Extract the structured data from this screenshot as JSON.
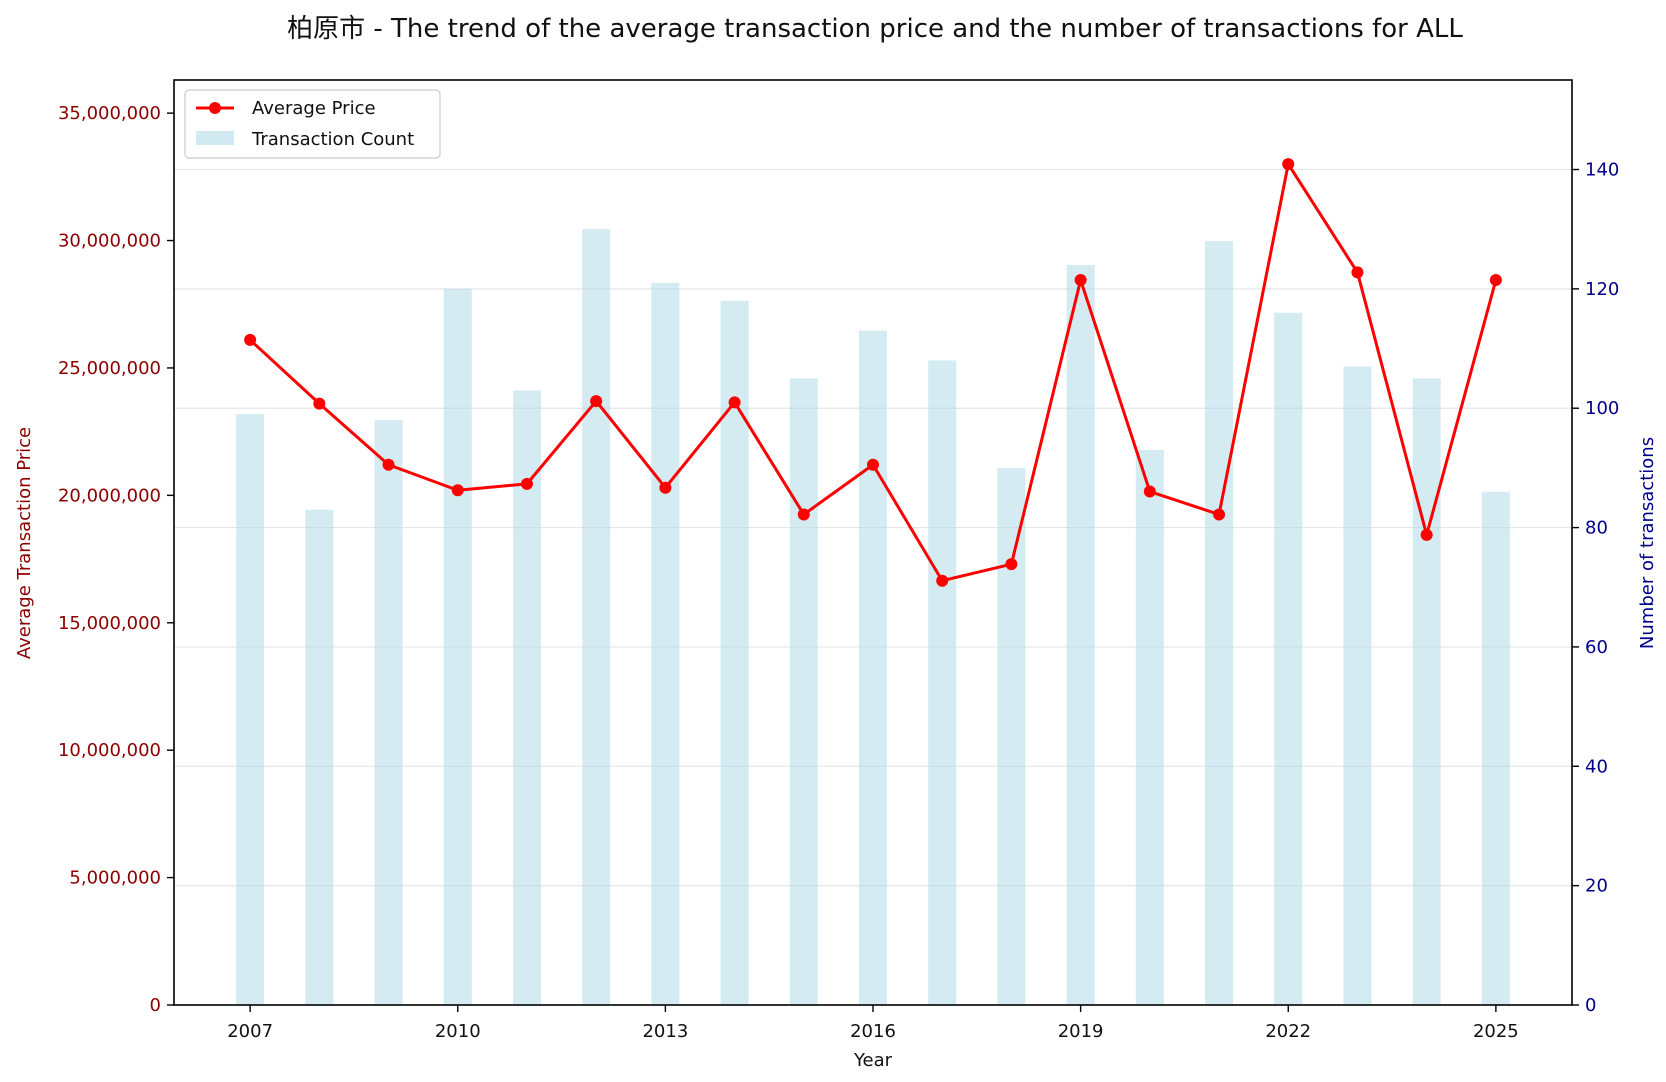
{
  "chart_data": {
    "type": "bar+line",
    "title": "柏原市 - The trend of the average transaction price and the number of transactions for ALL",
    "xlabel": "Year",
    "ylabel_left": "Average Transaction Price",
    "ylabel_right": "Number of transactions",
    "x": [
      2007,
      2008,
      2009,
      2010,
      2011,
      2012,
      2013,
      2014,
      2015,
      2016,
      2017,
      2018,
      2019,
      2020,
      2021,
      2022,
      2023,
      2024,
      2025
    ],
    "x_ticks": [
      "2007",
      "2010",
      "2013",
      "2016",
      "2019",
      "2022",
      "2025"
    ],
    "xlim": [
      2005.9,
      2026.1
    ],
    "ylim_left": [
      0,
      36300000
    ],
    "ylim_right": [
      0,
      155
    ],
    "y_ticks_left": [
      "0",
      "5,000,000",
      "10,000,000",
      "15,000,000",
      "20,000,000",
      "25,000,000",
      "30,000,000",
      "35,000,000"
    ],
    "y_ticks_left_values": [
      0,
      5000000,
      10000000,
      15000000,
      20000000,
      25000000,
      30000000,
      35000000
    ],
    "y_ticks_right": [
      "0",
      "20",
      "40",
      "60",
      "80",
      "100",
      "120",
      "140"
    ],
    "y_ticks_right_values": [
      0,
      20,
      40,
      60,
      80,
      100,
      120,
      140
    ],
    "grid": true,
    "legend_position": "top-left",
    "series": [
      {
        "name": "Average Price",
        "kind": "line",
        "axis": "left",
        "color": "#ff0000",
        "values": [
          26100000,
          23600000,
          21200000,
          20200000,
          20450000,
          23700000,
          20300000,
          23650000,
          19250000,
          21200000,
          16650000,
          17300000,
          28450000,
          20150000,
          19250000,
          33000000,
          28750000,
          18450000,
          28450000
        ]
      },
      {
        "name": "Transaction Count",
        "kind": "bar",
        "axis": "right",
        "color": "#add8e6",
        "values": [
          99,
          83,
          98,
          120,
          103,
          130,
          121,
          118,
          105,
          113,
          108,
          90,
          124,
          93,
          128,
          116,
          107,
          105,
          86
        ]
      }
    ]
  },
  "colors": {
    "left_axis": "#8b0000",
    "right_axis": "#00008b",
    "bar": "#add8e6",
    "line": "#ff0000",
    "grid": "#e6e6e6"
  }
}
